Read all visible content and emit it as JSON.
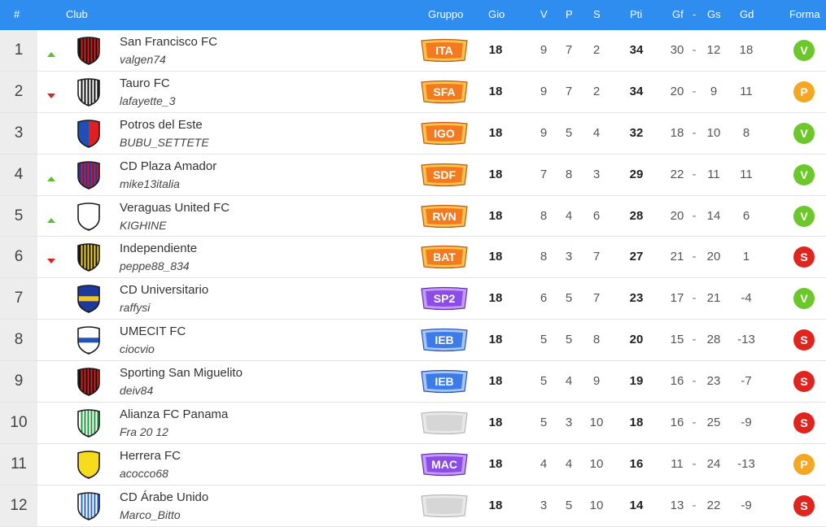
{
  "header": {
    "pos": "#",
    "club": "Club",
    "gruppo": "Gruppo",
    "gio": "Gio",
    "v": "V",
    "p": "P",
    "s": "S",
    "pti": "Pti",
    "gf": "Gf",
    "sep": "-",
    "gs": "Gs",
    "gd": "Gd",
    "forma": "Forma"
  },
  "colors": {
    "header_bg": "#2e8def",
    "trend_up": "#5cc02c",
    "trend_down": "#e02020",
    "forma_v": "#6cc72a",
    "forma_p": "#f5a623",
    "forma_s": "#e0251f",
    "badge_orange": "#f47a1f",
    "badge_purple": "#8a4de8",
    "badge_blue": "#3b7ce8",
    "badge_empty": "#d6d6d6"
  },
  "rows": [
    {
      "pos": "1",
      "trend": "up",
      "crest": "red-black-stripes",
      "name": "San Francisco FC",
      "user": "valgen74",
      "group": "ITA",
      "badge": "orange",
      "gio": "18",
      "v": "9",
      "p": "7",
      "s": "2",
      "pti": "34",
      "gf": "30",
      "sep": "-",
      "gs": "12",
      "gd": "18",
      "forma": "V"
    },
    {
      "pos": "2",
      "trend": "down",
      "crest": "black-white-stripes",
      "name": "Tauro FC",
      "user": "lafayette_3",
      "group": "SFA",
      "badge": "orange",
      "gio": "18",
      "v": "9",
      "p": "7",
      "s": "2",
      "pti": "34",
      "gf": "20",
      "sep": "-",
      "gs": "9",
      "gd": "11",
      "forma": "P"
    },
    {
      "pos": "3",
      "trend": "none",
      "crest": "blue-red-half",
      "name": "Potros del Este",
      "user": "BUBU_SETTETE",
      "group": "IGO",
      "badge": "orange",
      "gio": "18",
      "v": "9",
      "p": "5",
      "s": "4",
      "pti": "32",
      "gf": "18",
      "sep": "-",
      "gs": "10",
      "gd": "8",
      "forma": "V"
    },
    {
      "pos": "4",
      "trend": "up",
      "crest": "blue-red-stripes",
      "name": "CD Plaza Amador",
      "user": "mike13italia",
      "group": "SDF",
      "badge": "orange",
      "gio": "18",
      "v": "7",
      "p": "8",
      "s": "3",
      "pti": "29",
      "gf": "22",
      "sep": "-",
      "gs": "11",
      "gd": "11",
      "forma": "V"
    },
    {
      "pos": "5",
      "trend": "up",
      "crest": "white-plain",
      "name": "Veraguas United FC",
      "user": "KIGHINE",
      "group": "RVN",
      "badge": "orange",
      "gio": "18",
      "v": "8",
      "p": "4",
      "s": "6",
      "pti": "28",
      "gf": "20",
      "sep": "-",
      "gs": "14",
      "gd": "6",
      "forma": "V"
    },
    {
      "pos": "6",
      "trend": "down",
      "crest": "yellow-black-stripes",
      "name": "Independiente",
      "user": "peppe88_834",
      "group": "BAT",
      "badge": "orange",
      "gio": "18",
      "v": "8",
      "p": "3",
      "s": "7",
      "pti": "27",
      "gf": "21",
      "sep": "-",
      "gs": "20",
      "gd": "1",
      "forma": "S"
    },
    {
      "pos": "7",
      "trend": "none",
      "crest": "blue-yellow-band",
      "name": "CD Universitario",
      "user": "raffysi",
      "group": "SP2",
      "badge": "purple",
      "gio": "18",
      "v": "6",
      "p": "5",
      "s": "7",
      "pti": "23",
      "gf": "17",
      "sep": "-",
      "gs": "21",
      "gd": "-4",
      "forma": "V"
    },
    {
      "pos": "8",
      "trend": "none",
      "crest": "white-blue-band",
      "name": "UMECIT FC",
      "user": "ciocvio",
      "group": "IEB",
      "badge": "blue",
      "gio": "18",
      "v": "5",
      "p": "5",
      "s": "8",
      "pti": "20",
      "gf": "15",
      "sep": "-",
      "gs": "28",
      "gd": "-13",
      "forma": "S"
    },
    {
      "pos": "9",
      "trend": "none",
      "crest": "red-black-stripes",
      "name": "Sporting San Miguelito",
      "user": "deiv84",
      "group": "IEB",
      "badge": "blue",
      "gio": "18",
      "v": "5",
      "p": "4",
      "s": "9",
      "pti": "19",
      "gf": "16",
      "sep": "-",
      "gs": "23",
      "gd": "-7",
      "forma": "S"
    },
    {
      "pos": "10",
      "trend": "none",
      "crest": "green-white-stripes",
      "name": "Alianza FC Panama",
      "user": "Fra 20 12",
      "group": "",
      "badge": "empty",
      "gio": "18",
      "v": "5",
      "p": "3",
      "s": "10",
      "pti": "18",
      "gf": "16",
      "sep": "-",
      "gs": "25",
      "gd": "-9",
      "forma": "S"
    },
    {
      "pos": "11",
      "trend": "none",
      "crest": "yellow-plain",
      "name": "Herrera FC",
      "user": "acocco68",
      "group": "MAC",
      "badge": "purple",
      "gio": "18",
      "v": "4",
      "p": "4",
      "s": "10",
      "pti": "16",
      "gf": "11",
      "sep": "-",
      "gs": "24",
      "gd": "-13",
      "forma": "P"
    },
    {
      "pos": "12",
      "trend": "none",
      "crest": "blue-white-stripes",
      "name": "CD Árabe Unido",
      "user": "Marco_Bitto",
      "group": "",
      "badge": "empty",
      "gio": "18",
      "v": "3",
      "p": "5",
      "s": "10",
      "pti": "14",
      "gf": "13",
      "sep": "-",
      "gs": "22",
      "gd": "-9",
      "forma": "S"
    }
  ]
}
